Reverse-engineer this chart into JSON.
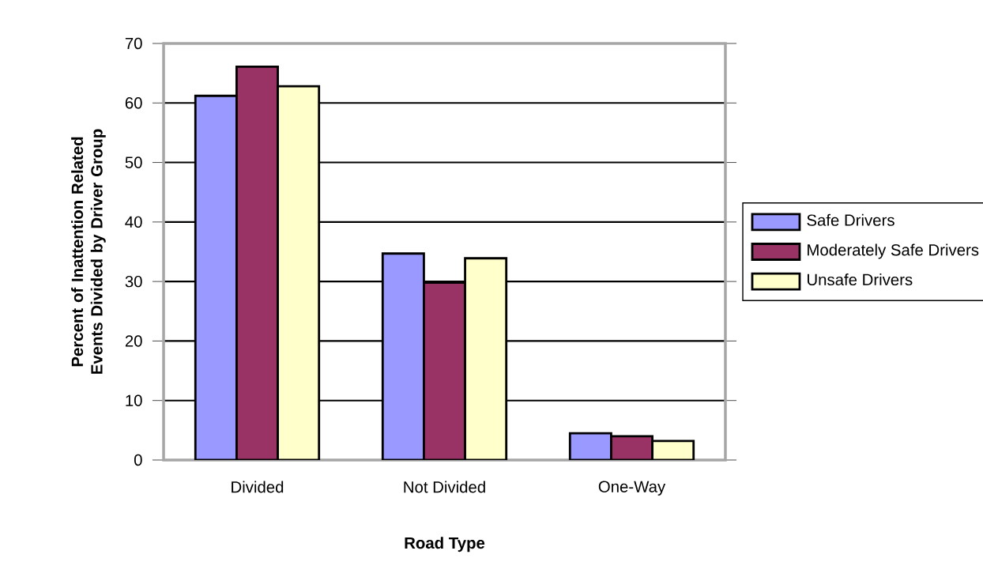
{
  "chart_data": {
    "type": "bar",
    "xlabel": "Road Type",
    "ylabel": "Percent of Inattention Related Events Divided by Driver Group",
    "categories": [
      "Divided",
      "Not Divided",
      "One-Way"
    ],
    "series": [
      {
        "name": "Safe Drivers",
        "color": "#9999ff",
        "values": [
          61.2,
          34.7,
          4.5
        ]
      },
      {
        "name": "Moderately Safe Drivers",
        "color": "#993366",
        "values": [
          66.1,
          29.8,
          4.0
        ]
      },
      {
        "name": "Unsafe Drivers",
        "color": "#ffffcc",
        "values": [
          62.8,
          33.9,
          3.2
        ]
      }
    ],
    "ylim": [
      0,
      70
    ],
    "yticks": [
      0,
      10,
      20,
      30,
      40,
      50,
      60,
      70
    ],
    "grid": "y",
    "legend": "right"
  }
}
